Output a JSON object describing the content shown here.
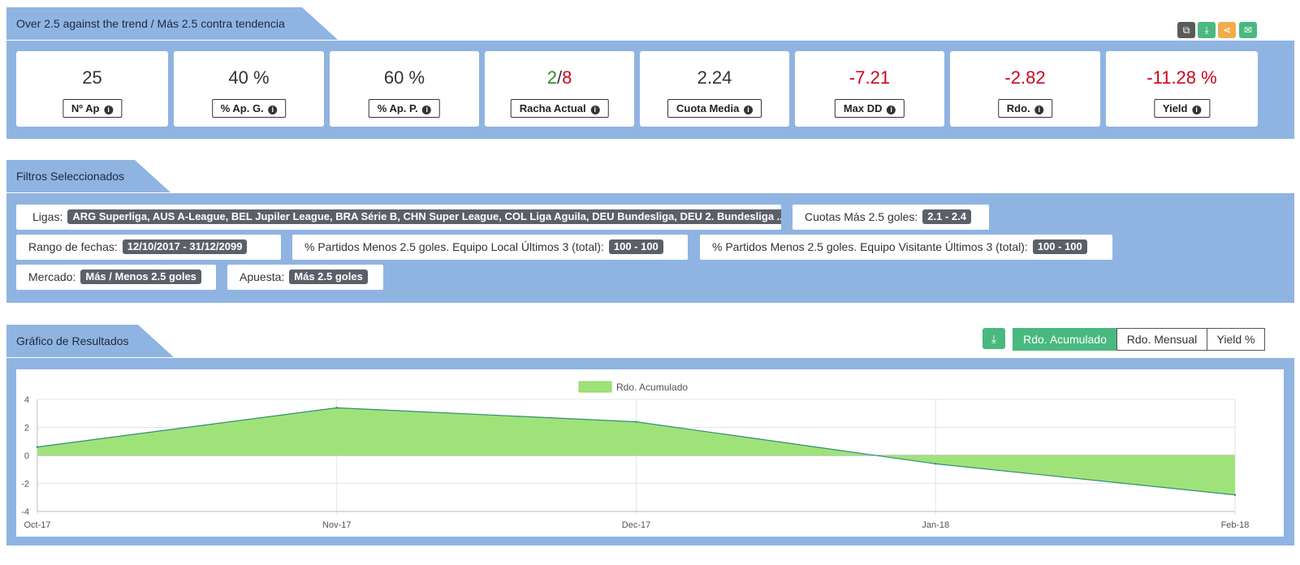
{
  "header": {
    "title": "Over 2.5 against the trend / Más 2.5 contra tendencia",
    "toolbar": [
      {
        "icon": "copy-icon",
        "color": "#5b5b5b"
      },
      {
        "icon": "download-icon",
        "color": "#49b97f"
      },
      {
        "icon": "share-icon",
        "color": "#f0ad4e"
      },
      {
        "icon": "envelope-icon",
        "color": "#49b97f"
      }
    ]
  },
  "stats": [
    {
      "value": "25",
      "label": "Nº Ap"
    },
    {
      "value": "40 %",
      "label": "% Ap. G."
    },
    {
      "value": "60 %",
      "label": "% Ap. P."
    },
    {
      "value_green": "2",
      "sep": "/",
      "value_red": "8",
      "label": "Racha Actual"
    },
    {
      "value": "2.24",
      "label": "Cuota Media"
    },
    {
      "value": "-7.21",
      "label": "Max DD"
    },
    {
      "value": "-2.82",
      "label": "Rdo."
    },
    {
      "value": "-11.28 %",
      "label": "Yield"
    }
  ],
  "filters": {
    "title": "Filtros Seleccionados",
    "items": [
      {
        "label": "Ligas:",
        "value": "ARG Superliga, AUS A-League, BEL Jupiler League, BRA Série B, CHN Super League, COL Liga Aguila, DEU Bundesliga, DEU 2. Bundesliga ..."
      },
      {
        "label": "Cuotas Más 2.5 goles:",
        "value": "2.1 - 2.4"
      },
      {
        "label": "Rango de fechas:",
        "value": "12/10/2017 - 31/12/2099"
      },
      {
        "label": "% Partidos Menos 2.5 goles. Equipo Local Últimos 3 (total):",
        "value": "100 - 100"
      },
      {
        "label": "% Partidos Menos 2.5 goles. Equipo Visitante Últimos 3 (total):",
        "value": "100 - 100"
      },
      {
        "label": "Mercado:",
        "value": "Más / Menos 2.5 goles"
      },
      {
        "label": "Apuesta:",
        "value": "Más 2.5 goles"
      }
    ]
  },
  "results": {
    "title": "Gráfico de Resultados",
    "buttons": [
      "Rdo. Acumulado",
      "Rdo. Mensual",
      "Yield %"
    ],
    "active": "Rdo. Acumulado"
  },
  "chart_data": {
    "type": "area",
    "title": "",
    "series": [
      {
        "name": "Rdo. Acumulado",
        "x": [
          "Oct-17",
          "Nov-17",
          "Dec-17",
          "Jan-18",
          "Feb-18"
        ],
        "values": [
          0.6,
          3.4,
          2.4,
          -0.6,
          -2.82
        ]
      }
    ],
    "categories": [
      "Oct-17",
      "Nov-17",
      "Dec-17",
      "Jan-18",
      "Feb-18"
    ],
    "ylim": [
      -4,
      4
    ],
    "yticks": [
      4,
      2,
      0,
      -2,
      -4
    ],
    "grid": true,
    "legend": "top-center",
    "fill_color": "#a0e27a",
    "line_color": "#2f8f6f"
  }
}
